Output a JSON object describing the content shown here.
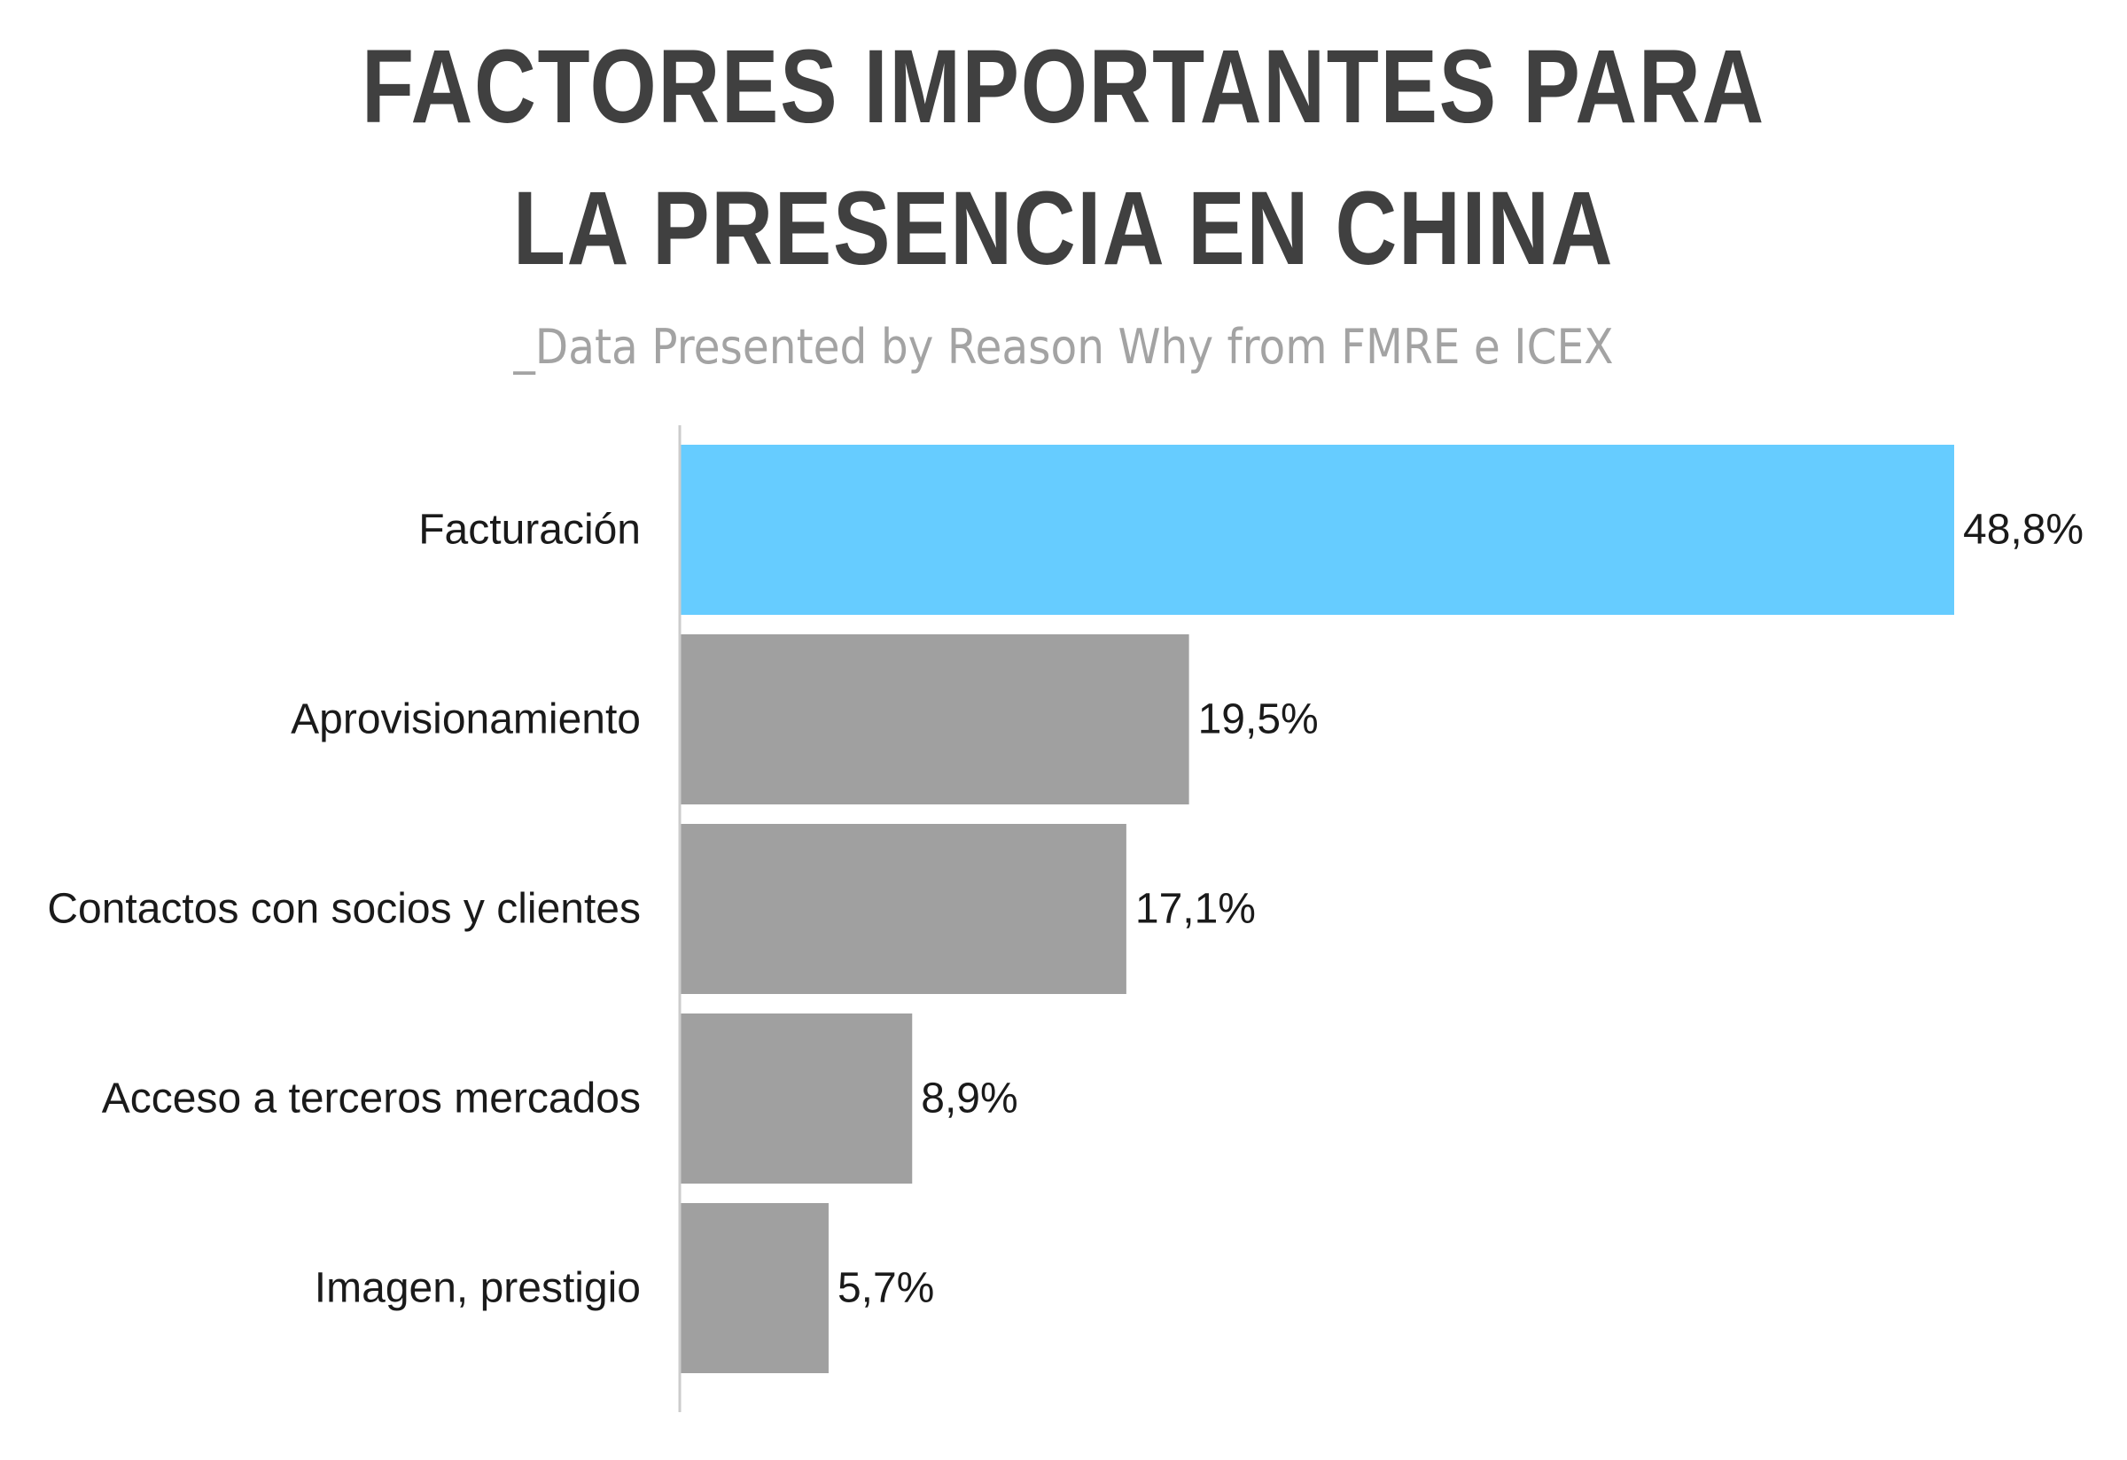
{
  "chart_data": {
    "type": "bar",
    "orientation": "horizontal",
    "title_lines": [
      "FACTORES IMPORTANTES PARA",
      "LA PRESENCIA EN CHINA"
    ],
    "subtitle": "_Data Presented by Reason Why from FMRE e ICEX",
    "categories": [
      "Facturación",
      "Aprovisionamiento",
      "Contactos con socios y clientes",
      "Acceso a terceros mercados",
      "Imagen, prestigio"
    ],
    "values": [
      48.8,
      19.5,
      17.1,
      8.9,
      5.7
    ],
    "value_labels": [
      "48,8%",
      "19,5%",
      "17,1%",
      "8,9%",
      "5,7%"
    ],
    "unit": "%",
    "xlim": [
      0,
      50
    ],
    "grid": false,
    "legend": "none",
    "highlight_index": 0,
    "colors": {
      "highlight": "#66ccff",
      "bar": "#a0a0a0",
      "axis": "#cccccc",
      "title": "#404040",
      "subtitle": "#a3a3a3",
      "text": "#1a1a1a"
    }
  }
}
